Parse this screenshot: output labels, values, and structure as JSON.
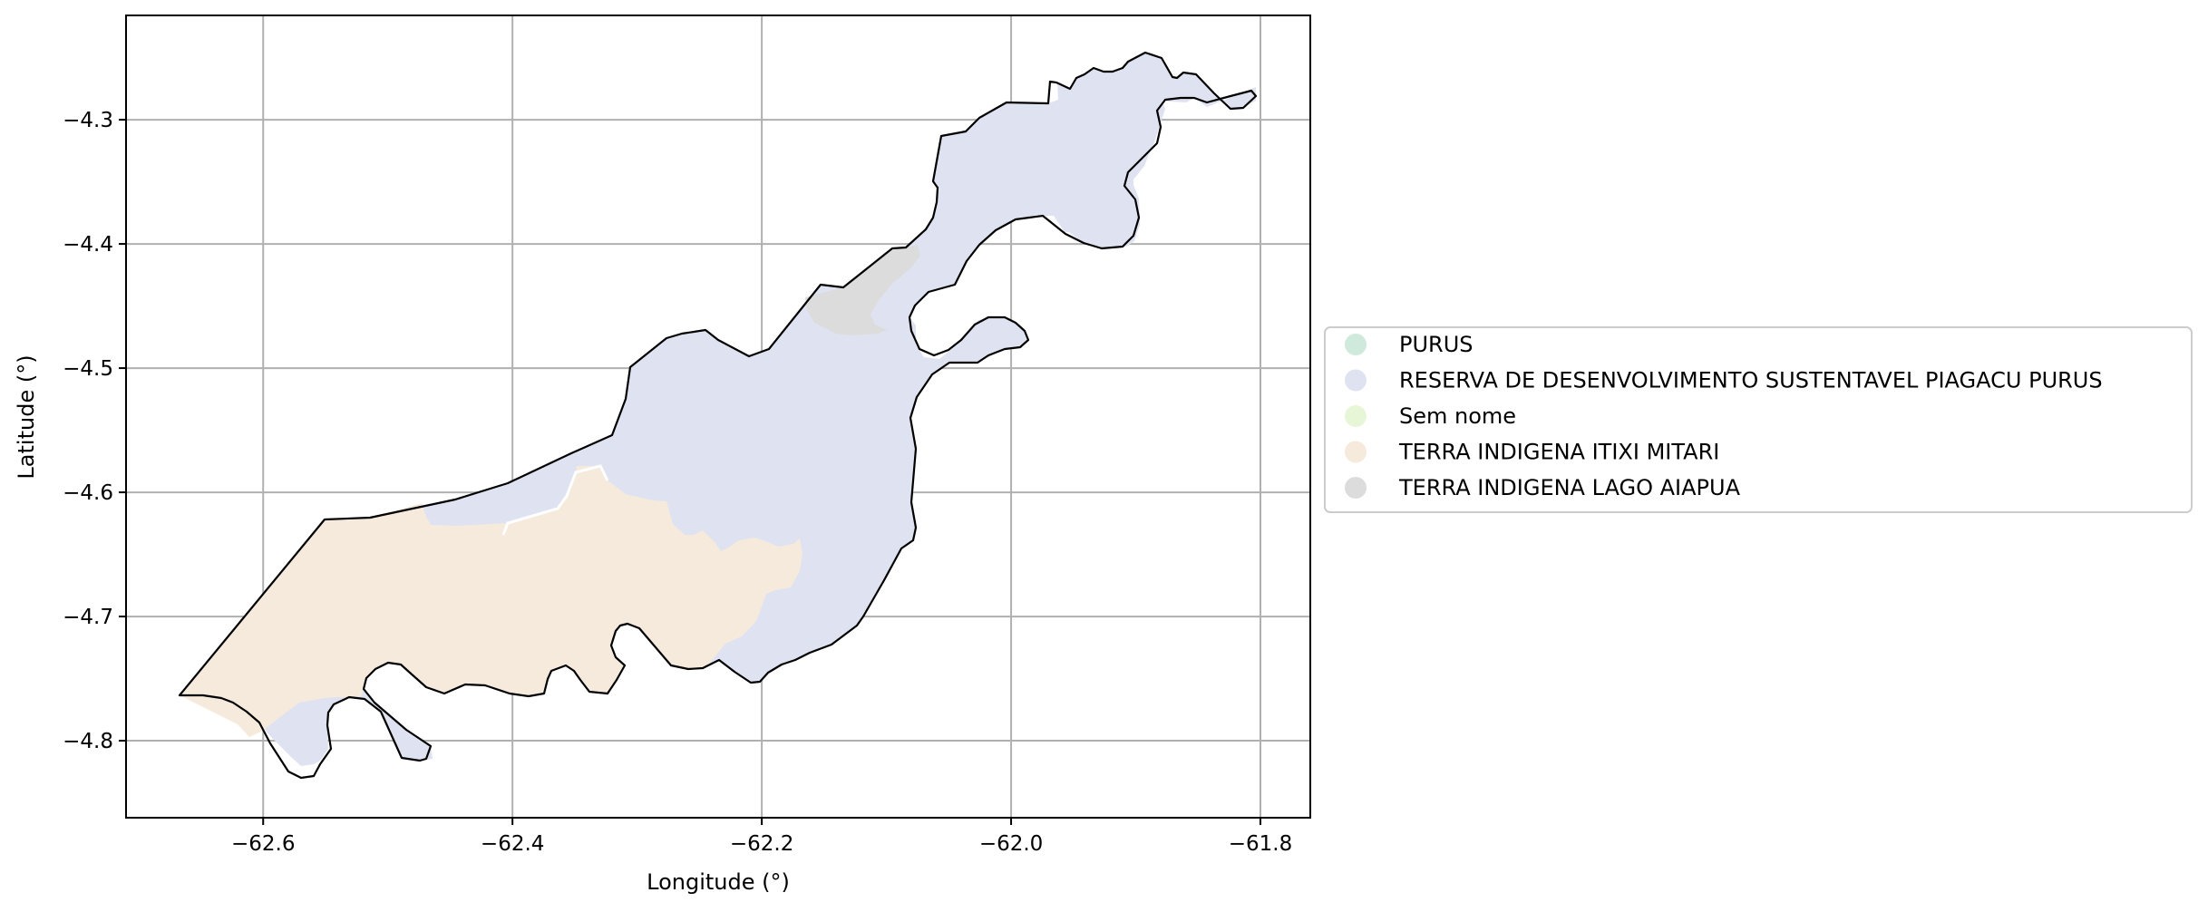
{
  "chart_data": {
    "type": "map",
    "xlabel": "Longitude (°)",
    "ylabel": "Latitude (°)",
    "xlim": [
      -62.71,
      -61.76
    ],
    "ylim": [
      -4.862,
      -4.216
    ],
    "grid": true,
    "legend_placement": "center-right, outside plot",
    "x_ticks": [
      {
        "value": -62.6,
        "label": "−62.6"
      },
      {
        "value": -62.4,
        "label": "−62.4"
      },
      {
        "value": -62.2,
        "label": "−62.2"
      },
      {
        "value": -62.0,
        "label": "−62.0"
      },
      {
        "value": -61.8,
        "label": "−61.8"
      }
    ],
    "y_ticks": [
      {
        "value": -4.3,
        "label": "−4.3"
      },
      {
        "value": -4.4,
        "label": "−4.4"
      },
      {
        "value": -4.5,
        "label": "−4.5"
      },
      {
        "value": -4.6,
        "label": "−4.6"
      },
      {
        "value": -4.7,
        "label": "−4.7"
      },
      {
        "value": -4.8,
        "label": "−4.8"
      }
    ],
    "legend": [
      {
        "label": "PURUS",
        "color": "#cfe9dd"
      },
      {
        "label": "RESERVA DE DESENVOLVIMENTO SUSTENTAVEL PIAGACU PURUS",
        "color": "#dfe3f1"
      },
      {
        "label": "Sem nome",
        "color": "#e8f6d8"
      },
      {
        "label": "TERRA INDIGENA ITIXI MITARI",
        "color": "#f5eadc"
      },
      {
        "label": "TERRA INDIGENA LAGO AIAPUA",
        "color": "#dcdcdc"
      }
    ],
    "regions": [
      {
        "name": "RESERVA DE DESENVOLVIMENTO SUSTENTAVEL PIAGACU PURUS",
        "color": "#dfe3f1"
      },
      {
        "name": "TERRA INDIGENA ITIXI MITARI",
        "color": "#f5eadc"
      },
      {
        "name": "TERRA INDIGENA LAGO AIAPUA",
        "color": "#dcdcdc"
      }
    ]
  }
}
